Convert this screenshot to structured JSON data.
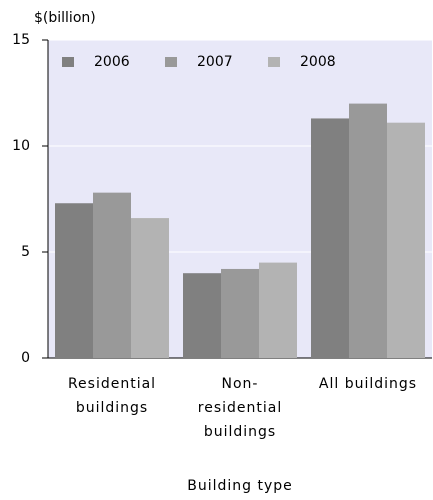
{
  "chart_data": {
    "type": "bar",
    "y_label": "$(billion)",
    "x_label": "Building type",
    "categories": [
      "Residential buildings",
      "Non-residential buildings",
      "All buildings"
    ],
    "series": [
      {
        "name": "2006",
        "color": "#808080",
        "values": [
          7.3,
          4.0,
          11.3
        ]
      },
      {
        "name": "2007",
        "color": "#999999",
        "values": [
          7.8,
          4.2,
          12.0
        ]
      },
      {
        "name": "2008",
        "color": "#b3b3b3",
        "values": [
          6.6,
          4.5,
          11.1
        ]
      }
    ],
    "ylim": [
      0,
      15
    ],
    "yticks": [
      0,
      5,
      10,
      15
    ],
    "grid": true,
    "legend": "top-left"
  }
}
